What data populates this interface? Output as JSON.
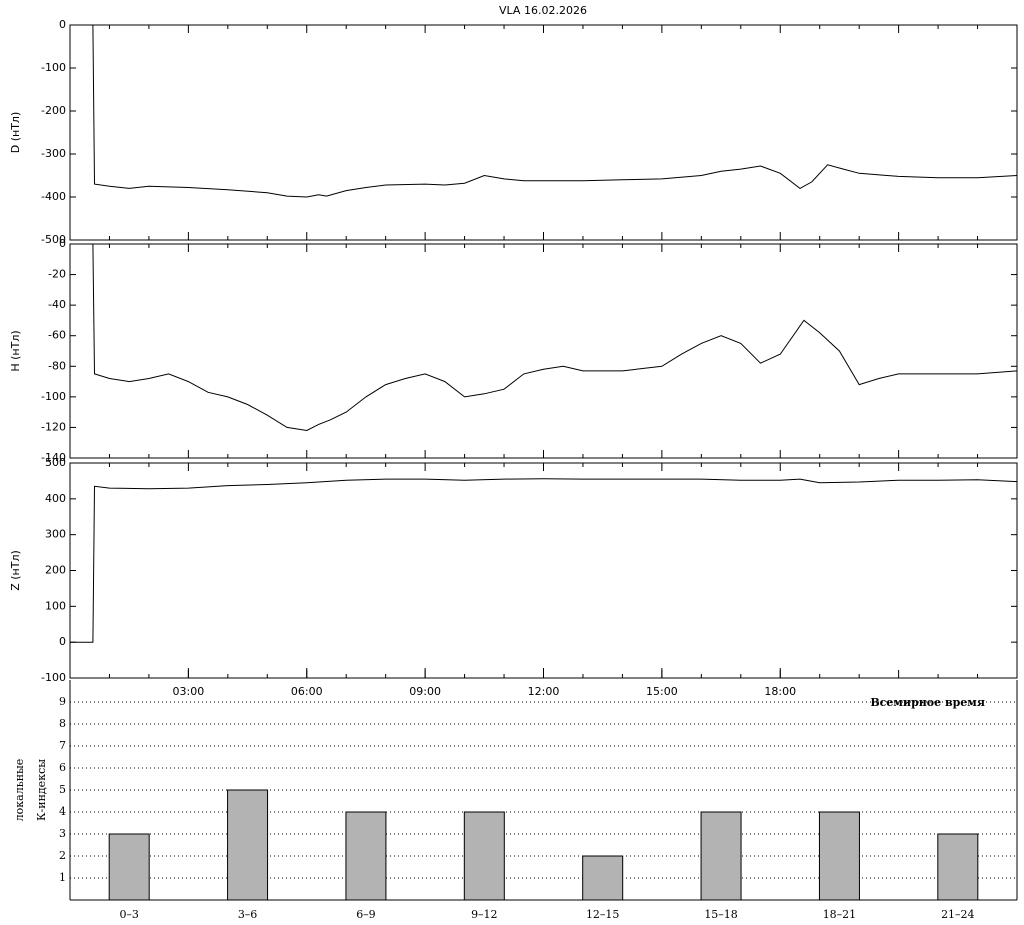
{
  "chart_data": [
    {
      "type": "line",
      "title": "VLA   16.02.2026",
      "ylabel": "D (нТл)",
      "color": "#000000",
      "x": [
        0.58,
        0.62,
        1,
        1.5,
        2,
        3,
        4,
        5,
        5.5,
        6,
        6.3,
        6.5,
        7,
        7.5,
        8,
        9,
        9.5,
        10,
        10.5,
        11,
        11.5,
        12,
        13,
        14,
        15,
        16,
        16.5,
        17,
        17.5,
        18,
        18.5,
        18.8,
        19.2,
        19.6,
        20,
        21,
        22,
        23,
        24
      ],
      "values": [
        0,
        -370,
        -375,
        -380,
        -375,
        -378,
        -383,
        -390,
        -398,
        -400,
        -395,
        -398,
        -385,
        -378,
        -372,
        -370,
        -372,
        -368,
        -350,
        -358,
        -362,
        -362,
        -362,
        -360,
        -358,
        -350,
        -340,
        -335,
        -328,
        -345,
        -380,
        -365,
        -325,
        -335,
        -345,
        -352,
        -355,
        -355,
        -350
      ],
      "xlim": [
        0,
        24
      ],
      "ylim": [
        -500,
        0
      ],
      "yticks": [
        0,
        -100,
        -200,
        -300,
        -400,
        -500
      ]
    },
    {
      "type": "line",
      "ylabel": "H (нТл)",
      "color": "#000000",
      "x": [
        0.58,
        0.62,
        1,
        1.5,
        2,
        2.5,
        3,
        3.5,
        4,
        4.5,
        5,
        5.5,
        6,
        6.3,
        6.6,
        7,
        7.5,
        8,
        8.5,
        9,
        9.5,
        10,
        10.5,
        11,
        11.5,
        12,
        12.5,
        13,
        14,
        15,
        15.5,
        16,
        16.5,
        17,
        17.5,
        18,
        18.6,
        19,
        19.5,
        20,
        20.5,
        21,
        22,
        23,
        24
      ],
      "values": [
        0,
        -85,
        -88,
        -90,
        -88,
        -85,
        -90,
        -97,
        -100,
        -105,
        -112,
        -120,
        -122,
        -118,
        -115,
        -110,
        -100,
        -92,
        -88,
        -85,
        -90,
        -100,
        -98,
        -95,
        -85,
        -82,
        -80,
        -83,
        -83,
        -80,
        -72,
        -65,
        -60,
        -65,
        -78,
        -72,
        -50,
        -58,
        -70,
        -92,
        -88,
        -85,
        -85,
        -85,
        -83
      ],
      "xlim": [
        0,
        24
      ],
      "ylim": [
        -140,
        0
      ],
      "yticks": [
        0,
        -20,
        -40,
        -60,
        -80,
        -100,
        -120,
        -140
      ]
    },
    {
      "type": "line",
      "ylabel": "Z (нТл)",
      "color": "#000000",
      "x": [
        0,
        0.58,
        0.62,
        1,
        2,
        3,
        4,
        5,
        6,
        7,
        8,
        9,
        10,
        11,
        12,
        13,
        14,
        15,
        16,
        17,
        18,
        18.5,
        19,
        20,
        21,
        22,
        23,
        24
      ],
      "values": [
        0,
        0,
        435,
        430,
        428,
        430,
        437,
        440,
        445,
        452,
        455,
        455,
        452,
        455,
        456,
        455,
        455,
        455,
        455,
        452,
        452,
        455,
        445,
        447,
        452,
        452,
        453,
        448
      ],
      "xlim": [
        0,
        24
      ],
      "ylim": [
        -100,
        500
      ],
      "yticks": [
        500,
        400,
        300,
        200,
        100,
        0,
        -100
      ],
      "xticks": [
        {
          "value": 3,
          "label": "03:00"
        },
        {
          "value": 6,
          "label": "06:00"
        },
        {
          "value": 9,
          "label": "09:00"
        },
        {
          "value": 12,
          "label": "12:00"
        },
        {
          "value": 15,
          "label": "15:00"
        },
        {
          "value": 18,
          "label": "18:00"
        }
      ]
    },
    {
      "type": "bar",
      "annotation": "Всемирное время",
      "ylabel": [
        "локальные",
        "К-индексы"
      ],
      "color": "#b3b3b3",
      "categories": [
        "0–3",
        "3–6",
        "6–9",
        "9–12",
        "12–15",
        "15–18",
        "18–21",
        "21–24"
      ],
      "values": [
        3,
        5,
        4,
        4,
        2,
        4,
        4,
        3
      ],
      "ylim": [
        0,
        10
      ],
      "yticks": [
        1,
        2,
        3,
        4,
        5,
        6,
        7,
        8,
        9
      ],
      "grid": true
    }
  ]
}
